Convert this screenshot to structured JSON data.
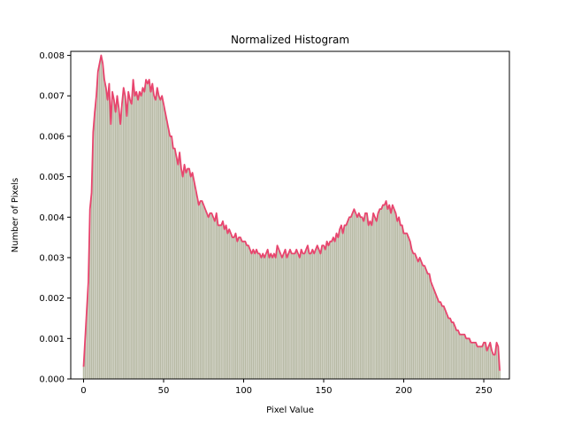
{
  "chart_data": {
    "type": "bar",
    "title": "Normalized Histogram",
    "xlabel": "Pixel Value",
    "ylabel": "Number of Pixels",
    "xlim": [
      -8,
      266
    ],
    "ylim": [
      0,
      0.0081
    ],
    "x_ticks": [
      {
        "value": 0,
        "label": "0"
      },
      {
        "value": 50,
        "label": "50"
      },
      {
        "value": 100,
        "label": "100"
      },
      {
        "value": 150,
        "label": "150"
      },
      {
        "value": 200,
        "label": "200"
      },
      {
        "value": 250,
        "label": "250"
      }
    ],
    "y_ticks": [
      {
        "value": 0.0,
        "label": "0.000"
      },
      {
        "value": 0.001,
        "label": "0.001"
      },
      {
        "value": 0.002,
        "label": "0.002"
      },
      {
        "value": 0.003,
        "label": "0.003"
      },
      {
        "value": 0.004,
        "label": "0.004"
      },
      {
        "value": 0.005,
        "label": "0.005"
      },
      {
        "value": 0.006,
        "label": "0.006"
      },
      {
        "value": 0.007,
        "label": "0.007"
      },
      {
        "value": 0.008,
        "label": "0.008"
      }
    ],
    "grid": false,
    "bar_color": "#b7b9a4",
    "line_color": "#e8456e",
    "x_start": 0,
    "values": [
      0.0003,
      0.001,
      0.0017,
      0.0024,
      0.0042,
      0.0046,
      0.0061,
      0.0066,
      0.007,
      0.0076,
      0.0078,
      0.008,
      0.0078,
      0.0074,
      0.0072,
      0.0069,
      0.0073,
      0.0063,
      0.0071,
      0.0069,
      0.0066,
      0.007,
      0.0067,
      0.0063,
      0.0068,
      0.0072,
      0.007,
      0.0065,
      0.0071,
      0.0069,
      0.0068,
      0.0074,
      0.007,
      0.0071,
      0.0069,
      0.0071,
      0.007,
      0.0072,
      0.0071,
      0.0074,
      0.0073,
      0.0074,
      0.0071,
      0.0073,
      0.007,
      0.0069,
      0.0072,
      0.007,
      0.0069,
      0.007,
      0.0068,
      0.0066,
      0.0064,
      0.0062,
      0.006,
      0.006,
      0.0057,
      0.0057,
      0.0055,
      0.0053,
      0.0056,
      0.0052,
      0.005,
      0.0053,
      0.0051,
      0.0052,
      0.0052,
      0.005,
      0.0051,
      0.0049,
      0.0047,
      0.0045,
      0.0043,
      0.0044,
      0.0044,
      0.0043,
      0.0042,
      0.0041,
      0.004,
      0.0041,
      0.0041,
      0.004,
      0.0039,
      0.0041,
      0.0038,
      0.0038,
      0.0038,
      0.0039,
      0.0037,
      0.0038,
      0.0036,
      0.0037,
      0.0036,
      0.0035,
      0.0035,
      0.0036,
      0.0034,
      0.0035,
      0.0035,
      0.0034,
      0.0034,
      0.0034,
      0.0033,
      0.0033,
      0.0032,
      0.0031,
      0.0032,
      0.0031,
      0.0032,
      0.0031,
      0.0031,
      0.003,
      0.0031,
      0.003,
      0.0031,
      0.0032,
      0.003,
      0.0031,
      0.003,
      0.0031,
      0.003,
      0.0033,
      0.0032,
      0.0031,
      0.003,
      0.0031,
      0.0032,
      0.003,
      0.0031,
      0.0032,
      0.0031,
      0.0031,
      0.0031,
      0.0032,
      0.0031,
      0.003,
      0.0032,
      0.0031,
      0.0031,
      0.0032,
      0.0033,
      0.0031,
      0.0031,
      0.0032,
      0.0031,
      0.0032,
      0.0033,
      0.0032,
      0.0031,
      0.0033,
      0.0033,
      0.0032,
      0.0034,
      0.0033,
      0.0034,
      0.0034,
      0.0035,
      0.0034,
      0.0036,
      0.0035,
      0.0037,
      0.0038,
      0.0036,
      0.0038,
      0.0038,
      0.0039,
      0.004,
      0.004,
      0.0041,
      0.0042,
      0.0041,
      0.004,
      0.0041,
      0.004,
      0.004,
      0.0039,
      0.0041,
      0.0041,
      0.0038,
      0.0039,
      0.0038,
      0.0041,
      0.004,
      0.0039,
      0.0041,
      0.0042,
      0.0042,
      0.0043,
      0.0043,
      0.0044,
      0.0042,
      0.0043,
      0.0041,
      0.0043,
      0.0042,
      0.0041,
      0.0039,
      0.004,
      0.0038,
      0.0038,
      0.0036,
      0.0036,
      0.0036,
      0.0035,
      0.0034,
      0.0032,
      0.0031,
      0.0031,
      0.003,
      0.0029,
      0.003,
      0.0029,
      0.0028,
      0.0028,
      0.0027,
      0.0026,
      0.0026,
      0.0024,
      0.0023,
      0.0022,
      0.0021,
      0.002,
      0.0019,
      0.0019,
      0.0018,
      0.0018,
      0.0017,
      0.0016,
      0.0015,
      0.0015,
      0.0014,
      0.0014,
      0.0013,
      0.0012,
      0.0012,
      0.0011,
      0.0011,
      0.0011,
      0.0011,
      0.001,
      0.001,
      0.001,
      0.0009,
      0.0009,
      0.0009,
      0.0009,
      0.0008,
      0.0008,
      0.0008,
      0.0008,
      0.0009,
      0.0009,
      0.0007,
      0.0008,
      0.0009,
      0.0007,
      0.0006,
      0.0006,
      0.0009,
      0.0008,
      0.0002
    ]
  }
}
